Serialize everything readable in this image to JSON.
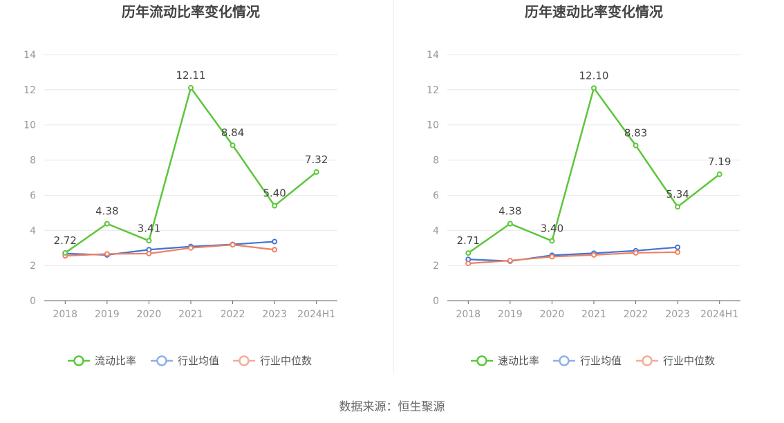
{
  "source": "数据来源：恒生聚源",
  "colors": {
    "primary": "#5cc63a",
    "industry_avg": "#3f75d8",
    "industry_median": "#f08060",
    "legend_avg": "#8fb0e6",
    "legend_median": "#f5ad98",
    "grid": "#e5e5e5",
    "axis": "#666666",
    "tick_label": "#999999",
    "title": "#444444"
  },
  "chart_data": [
    {
      "type": "line",
      "title": "历年流动比率变化情况",
      "categories": [
        "2018",
        "2019",
        "2020",
        "2021",
        "2022",
        "2023",
        "2024H1"
      ],
      "ylim": [
        0,
        14
      ],
      "yticks": [
        "0",
        "2",
        "4",
        "6",
        "8",
        "10",
        "12",
        "14"
      ],
      "grid": true,
      "legend_position": "bottom",
      "series": [
        {
          "name": "流动比率",
          "values": [
            2.72,
            4.38,
            3.41,
            12.11,
            8.84,
            5.4,
            7.32
          ],
          "labels": [
            "2.72",
            "4.38",
            "3.41",
            "12.11",
            "8.84",
            "5.40",
            "7.32"
          ]
        },
        {
          "name": "行业均值",
          "values": [
            2.68,
            2.6,
            2.9,
            3.08,
            3.2,
            3.36,
            null
          ]
        },
        {
          "name": "行业中位数",
          "values": [
            2.55,
            2.66,
            2.68,
            3.0,
            3.18,
            2.9,
            null
          ]
        }
      ]
    },
    {
      "type": "line",
      "title": "历年速动比率变化情况",
      "categories": [
        "2018",
        "2019",
        "2020",
        "2021",
        "2022",
        "2023",
        "2024H1"
      ],
      "ylim": [
        0,
        14
      ],
      "yticks": [
        "0",
        "2",
        "4",
        "6",
        "8",
        "10",
        "12",
        "14"
      ],
      "grid": true,
      "legend_position": "bottom",
      "series": [
        {
          "name": "速动比率",
          "values": [
            2.71,
            4.38,
            3.4,
            12.1,
            8.83,
            5.34,
            7.19
          ],
          "labels": [
            "2.71",
            "4.38",
            "3.40",
            "12.10",
            "8.83",
            "5.34",
            "7.19"
          ]
        },
        {
          "name": "行业均值",
          "values": [
            2.35,
            2.25,
            2.58,
            2.7,
            2.84,
            3.04,
            null
          ]
        },
        {
          "name": "行业中位数",
          "values": [
            2.12,
            2.28,
            2.5,
            2.6,
            2.72,
            2.76,
            null
          ]
        }
      ]
    }
  ]
}
